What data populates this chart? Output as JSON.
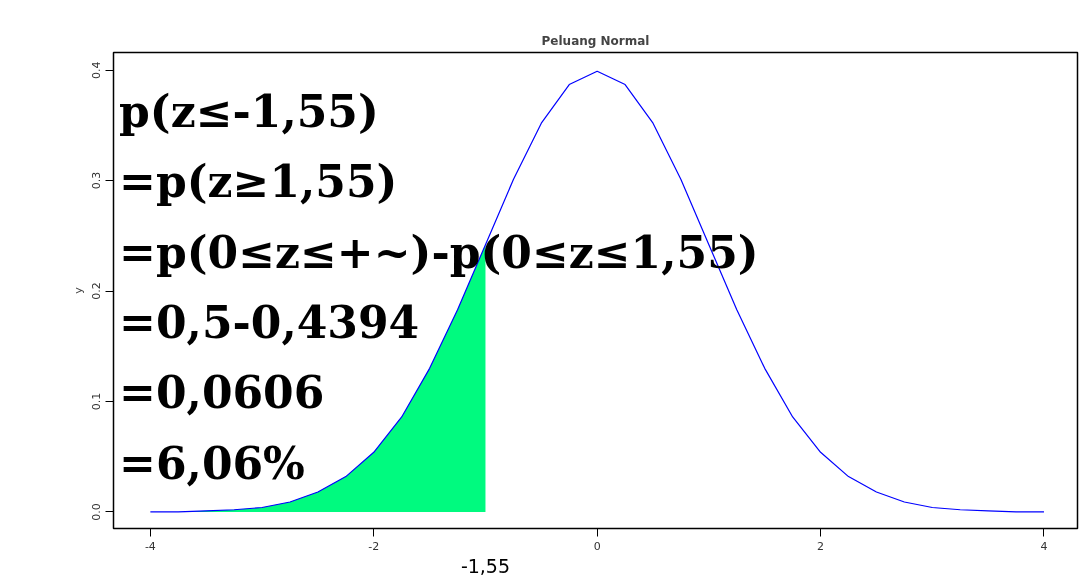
{
  "chart_data": {
    "type": "line",
    "title": "Peluang Normal",
    "ylabel": "y",
    "xlim": [
      -4.33,
      4.3
    ],
    "ylim": [
      -0.015,
      0.416
    ],
    "xticks": [
      -4,
      -2,
      0,
      2,
      4
    ],
    "yticks": [
      {
        "value": 0,
        "label": "0.0"
      },
      {
        "value": 0.1,
        "label": "0.1"
      },
      {
        "value": 0.2,
        "label": "0.2"
      },
      {
        "value": 0.3,
        "label": "0.3"
      },
      {
        "value": 0.4,
        "label": "0.4"
      }
    ],
    "grid": false,
    "marker": "none",
    "line_style": "solid",
    "series": [
      {
        "type": "area",
        "color": "#00fa7f",
        "x": [
          -4.33,
          -4,
          -3.75,
          -3.5,
          -3.25,
          -3,
          -2.75,
          -2.5,
          -2.25,
          -2,
          -1.75,
          -1.5,
          -1.25,
          -1
        ],
        "values": [
          0.0,
          0.0,
          0.0,
          0.001,
          0.002,
          0.004,
          0.009,
          0.018,
          0.032,
          0.054,
          0.086,
          0.13,
          0.183,
          0.242
        ]
      },
      {
        "color": "#0000ff",
        "x": [
          -4,
          -3.75,
          -3.5,
          -3.25,
          -3,
          -2.75,
          -2.5,
          -2.25,
          -2,
          -1.75,
          -1.5,
          -1.25,
          -1,
          -0.75,
          -0.5,
          -0.25,
          0,
          0.25,
          0.5,
          0.75,
          1,
          1.25,
          1.5,
          1.75,
          2,
          2.25,
          2.5,
          2.75,
          3,
          3.25,
          3.5,
          3.75,
          4
        ],
        "values": [
          0.0,
          0.0,
          0.001,
          0.002,
          0.004,
          0.009,
          0.018,
          0.032,
          0.054,
          0.086,
          0.13,
          0.183,
          0.242,
          0.301,
          0.352,
          0.387,
          0.399,
          0.387,
          0.352,
          0.301,
          0.242,
          0.183,
          0.13,
          0.086,
          0.054,
          0.032,
          0.018,
          0.009,
          0.004,
          0.002,
          0.001,
          0.0,
          0.0
        ]
      }
    ],
    "annotations": [
      "p(z≤-1,55)",
      "=p(z≥1,55)",
      "=p(0≤z≤+~)-p(0≤z≤1,55)",
      "=0,5-0,4394",
      "=0,0606",
      "=6,06%",
      "-1,55"
    ]
  }
}
